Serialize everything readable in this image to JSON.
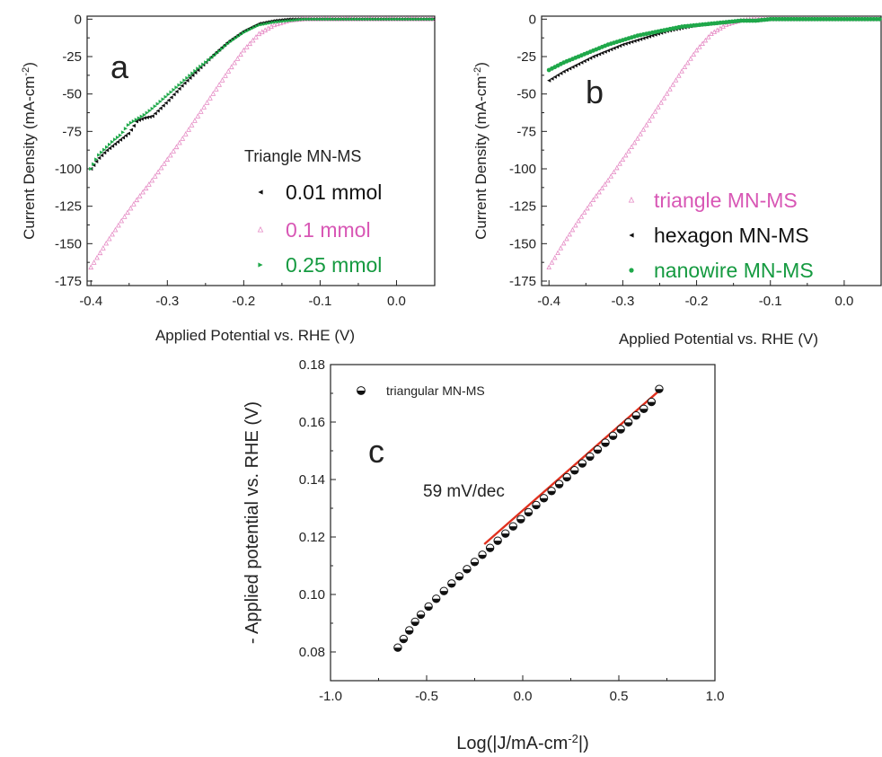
{
  "panel_a": {
    "letter": "a",
    "legend_title": "Triangle MN-MS",
    "legend_labels": [
      "0.01 mmol",
      "0.1 mmol",
      "0.25 mmol"
    ],
    "xlabel": "Applied Potential vs. RHE (V)",
    "ylabel_main": "Current Density (mA-cm",
    "ylabel_sup": "-2",
    "ylabel_end": ")",
    "xticks": [
      "-0.4",
      "-0.3",
      "-0.2",
      "-0.1",
      "0.0"
    ],
    "yticks": [
      "0",
      "-25",
      "-50",
      "-75",
      "-100",
      "-125",
      "-150",
      "-175"
    ]
  },
  "panel_b": {
    "letter": "b",
    "legend_labels": [
      "triangle MN-MS",
      "hexagon MN-MS",
      "nanowire MN-MS"
    ],
    "xlabel": "Applied Potential vs. RHE (V)",
    "ylabel_main": "Current Density (mA-cm",
    "ylabel_sup": "-2",
    "ylabel_end": ")",
    "xticks": [
      "-0.4",
      "-0.3",
      "-0.2",
      "-0.1",
      "0.0"
    ],
    "yticks": [
      "0",
      "-25",
      "-50",
      "-75",
      "-100",
      "-125",
      "-150",
      "-175"
    ]
  },
  "panel_c": {
    "letter": "c",
    "legend_label": "triangular MN-MS",
    "annotation": "59 mV/dec",
    "xlabel_main": "Log(|J/mA-cm",
    "xlabel_sup": "-2",
    "xlabel_end": "|)",
    "ylabel": "- Applied potential vs. RHE (V)",
    "xticks": [
      "-1.0",
      "-0.5",
      "0.0",
      "0.5",
      "1.0"
    ],
    "yticks": [
      "0.08",
      "0.10",
      "0.12",
      "0.14",
      "0.16",
      "0.18"
    ]
  },
  "colors": {
    "black_series": "#111111",
    "pink_series": "#e58ac4",
    "green_series": "#1fa84a",
    "pink_text": "#d857b5",
    "green_text": "#159a40",
    "fit_line": "#e0301e"
  },
  "chart_data": [
    {
      "panel": "a",
      "type": "scatter",
      "xlabel": "Applied Potential vs. RHE (V)",
      "ylabel": "Current Density (mA-cm-2)",
      "xlim": [
        -0.405,
        0.05
      ],
      "ylim": [
        -178,
        2
      ],
      "legend_title": "Triangle MN-MS",
      "legend_placement": "center-right",
      "series": [
        {
          "name": "0.01 mmol",
          "color": "#111111",
          "x": [
            -0.4,
            -0.39,
            -0.38,
            -0.37,
            -0.36,
            -0.35,
            -0.34,
            -0.33,
            -0.32,
            -0.3,
            -0.28,
            -0.26,
            -0.24,
            -0.22,
            -0.2,
            -0.18,
            -0.16,
            -0.14,
            -0.12,
            -0.1,
            -0.05,
            0.0,
            0.05
          ],
          "y": [
            -100,
            -93,
            -88,
            -84,
            -80,
            -76,
            -68,
            -66,
            -65,
            -55,
            -44,
            -34,
            -24,
            -15,
            -8,
            -3,
            -1,
            0,
            0,
            0,
            0,
            0,
            0
          ]
        },
        {
          "name": "0.1 mmol",
          "color": "#e58ac4",
          "x": [
            -0.4,
            -0.38,
            -0.36,
            -0.34,
            -0.32,
            -0.3,
            -0.28,
            -0.26,
            -0.24,
            -0.22,
            -0.2,
            -0.18,
            -0.16,
            -0.14,
            -0.12,
            -0.1,
            -0.05,
            0.0,
            0.05
          ],
          "y": [
            -166,
            -150,
            -135,
            -121,
            -108,
            -94,
            -80,
            -65,
            -50,
            -35,
            -21,
            -10,
            -4,
            -1,
            0,
            0,
            0,
            0,
            0
          ]
        },
        {
          "name": "0.25 mmol",
          "color": "#1fa84a",
          "x": [
            -0.4,
            -0.39,
            -0.38,
            -0.37,
            -0.36,
            -0.35,
            -0.34,
            -0.33,
            -0.32,
            -0.3,
            -0.28,
            -0.26,
            -0.24,
            -0.22,
            -0.2,
            -0.18,
            -0.16,
            -0.14,
            -0.12,
            -0.1,
            -0.05,
            0.0,
            0.05
          ],
          "y": [
            -100,
            -91,
            -86,
            -81,
            -77,
            -70,
            -67,
            -64,
            -60,
            -51,
            -42,
            -33,
            -25,
            -16,
            -9,
            -4,
            -2,
            -1,
            0,
            0,
            0,
            0,
            0
          ]
        }
      ]
    },
    {
      "panel": "b",
      "type": "scatter",
      "xlabel": "Applied Potential vs. RHE (V)",
      "ylabel": "Current Density (mA-cm-2)",
      "xlim": [
        -0.41,
        0.05
      ],
      "ylim": [
        -178,
        2
      ],
      "legend_placement": "bottom-right",
      "series": [
        {
          "name": "triangle MN-MS",
          "color": "#e58ac4",
          "x": [
            -0.4,
            -0.38,
            -0.36,
            -0.34,
            -0.32,
            -0.3,
            -0.28,
            -0.26,
            -0.24,
            -0.22,
            -0.2,
            -0.18,
            -0.16,
            -0.14,
            -0.12,
            -0.1,
            -0.05,
            0.0,
            0.05
          ],
          "y": [
            -166,
            -150,
            -135,
            -121,
            -108,
            -94,
            -80,
            -65,
            -50,
            -35,
            -21,
            -10,
            -4,
            -1,
            0,
            0,
            0,
            0,
            0
          ]
        },
        {
          "name": "hexagon MN-MS",
          "color": "#111111",
          "x": [
            -0.4,
            -0.38,
            -0.36,
            -0.34,
            -0.32,
            -0.3,
            -0.28,
            -0.26,
            -0.24,
            -0.22,
            -0.2,
            -0.18,
            -0.16,
            -0.14,
            -0.12,
            -0.1,
            -0.05,
            0.0,
            0.05
          ],
          "y": [
            -41,
            -35,
            -30,
            -25,
            -21,
            -17,
            -14,
            -11,
            -8,
            -6,
            -4,
            -3,
            -2,
            -1,
            -1,
            0,
            0,
            0,
            0
          ]
        },
        {
          "name": "nanowire MN-MS",
          "color": "#1fa84a",
          "x": [
            -0.4,
            -0.38,
            -0.36,
            -0.34,
            -0.32,
            -0.3,
            -0.28,
            -0.26,
            -0.24,
            -0.22,
            -0.2,
            -0.18,
            -0.16,
            -0.14,
            -0.12,
            -0.1,
            -0.05,
            0.0,
            0.05
          ],
          "y": [
            -34,
            -29,
            -25,
            -21,
            -17,
            -14,
            -11,
            -9,
            -7,
            -5,
            -4,
            -3,
            -2,
            -1,
            -1,
            0,
            0,
            0,
            0
          ]
        }
      ]
    },
    {
      "panel": "c",
      "type": "scatter",
      "xlabel": "Log(|J/mA-cm-2|)",
      "ylabel": "- Applied potential vs. RHE (V)",
      "xlim": [
        -1.0,
        1.0
      ],
      "ylim": [
        0.07,
        0.18
      ],
      "legend_placement": "top-left",
      "series": [
        {
          "name": "triangular MN-MS",
          "color": "#111111",
          "x": [
            -0.65,
            -0.62,
            -0.59,
            -0.56,
            -0.53,
            -0.49,
            -0.45,
            -0.41,
            -0.37,
            -0.33,
            -0.29,
            -0.25,
            -0.21,
            -0.17,
            -0.13,
            -0.09,
            -0.05,
            -0.01,
            0.03,
            0.07,
            0.11,
            0.15,
            0.19,
            0.23,
            0.27,
            0.31,
            0.35,
            0.39,
            0.43,
            0.47,
            0.51,
            0.55,
            0.59,
            0.63,
            0.67,
            0.71
          ],
          "y": [
            0.0815,
            0.0845,
            0.0875,
            0.0905,
            0.093,
            0.0958,
            0.0985,
            0.1012,
            0.1038,
            0.1063,
            0.1088,
            0.1113,
            0.1138,
            0.1162,
            0.1187,
            0.1212,
            0.1237,
            0.1262,
            0.1286,
            0.1311,
            0.1335,
            0.136,
            0.1384,
            0.1408,
            0.1432,
            0.1456,
            0.148,
            0.1504,
            0.1528,
            0.1552,
            0.1575,
            0.1599,
            0.1623,
            0.1646,
            0.167,
            0.1715
          ]
        },
        {
          "name": "59 mV/dec",
          "color": "#e0301e",
          "type": "line",
          "x": [
            -0.2,
            0.72
          ],
          "y": [
            0.1175,
            0.1715
          ]
        }
      ]
    }
  ]
}
